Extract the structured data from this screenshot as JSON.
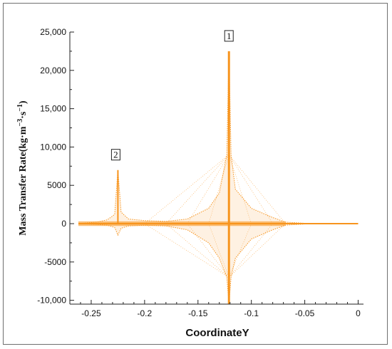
{
  "chart_data": {
    "type": "line",
    "title": "",
    "xlabel": "CoordinateY",
    "ylabel_main": "Mass Transfer Rate(kg·m",
    "ylabel_exp1": "−3",
    "ylabel_mid": "·s",
    "ylabel_exp2": "−1",
    "ylabel_end": ")",
    "xlim": [
      -0.27,
      0.005
    ],
    "ylim": [
      -10500,
      25000
    ],
    "x_ticks": [
      -0.25,
      -0.2,
      -0.15,
      -0.1,
      -0.05,
      0
    ],
    "x_tick_labels": [
      "-0.25",
      "-0.2",
      "-0.15",
      "-0.1",
      "-0.05",
      "0"
    ],
    "y_ticks": [
      -10000,
      -5000,
      0,
      5000,
      10000,
      15000,
      20000,
      25000
    ],
    "y_tick_labels": [
      "-10,000",
      "-5000",
      "0",
      "5000",
      "10,000",
      "15,000",
      "20,000",
      "25,000"
    ],
    "grid": false,
    "line_color": "#f7941d",
    "peaks": [
      {
        "label": "1",
        "x": -0.121,
        "y": 22500
      },
      {
        "label": "2",
        "x": -0.225,
        "y": 7000
      }
    ],
    "series": [
      {
        "x": [
          -0.262,
          -0.245,
          -0.235,
          -0.228,
          -0.225,
          -0.222,
          -0.215,
          -0.2,
          -0.18,
          -0.16,
          -0.14,
          -0.13,
          -0.123,
          -0.121,
          -0.119,
          -0.115,
          -0.1,
          -0.08,
          -0.068,
          -0.05,
          0
        ],
        "upper": [
          0,
          200,
          500,
          1200,
          7000,
          1500,
          600,
          400,
          300,
          600,
          2000,
          4000,
          9000,
          22500,
          9000,
          4500,
          2000,
          800,
          200,
          50,
          0
        ],
        "lower": [
          0,
          -100,
          -200,
          -500,
          -1500,
          -600,
          -300,
          -200,
          -300,
          -800,
          -2500,
          -4500,
          -7000,
          -10500,
          -7000,
          -4500,
          -2000,
          -800,
          -200,
          -50,
          0
        ]
      }
    ]
  }
}
